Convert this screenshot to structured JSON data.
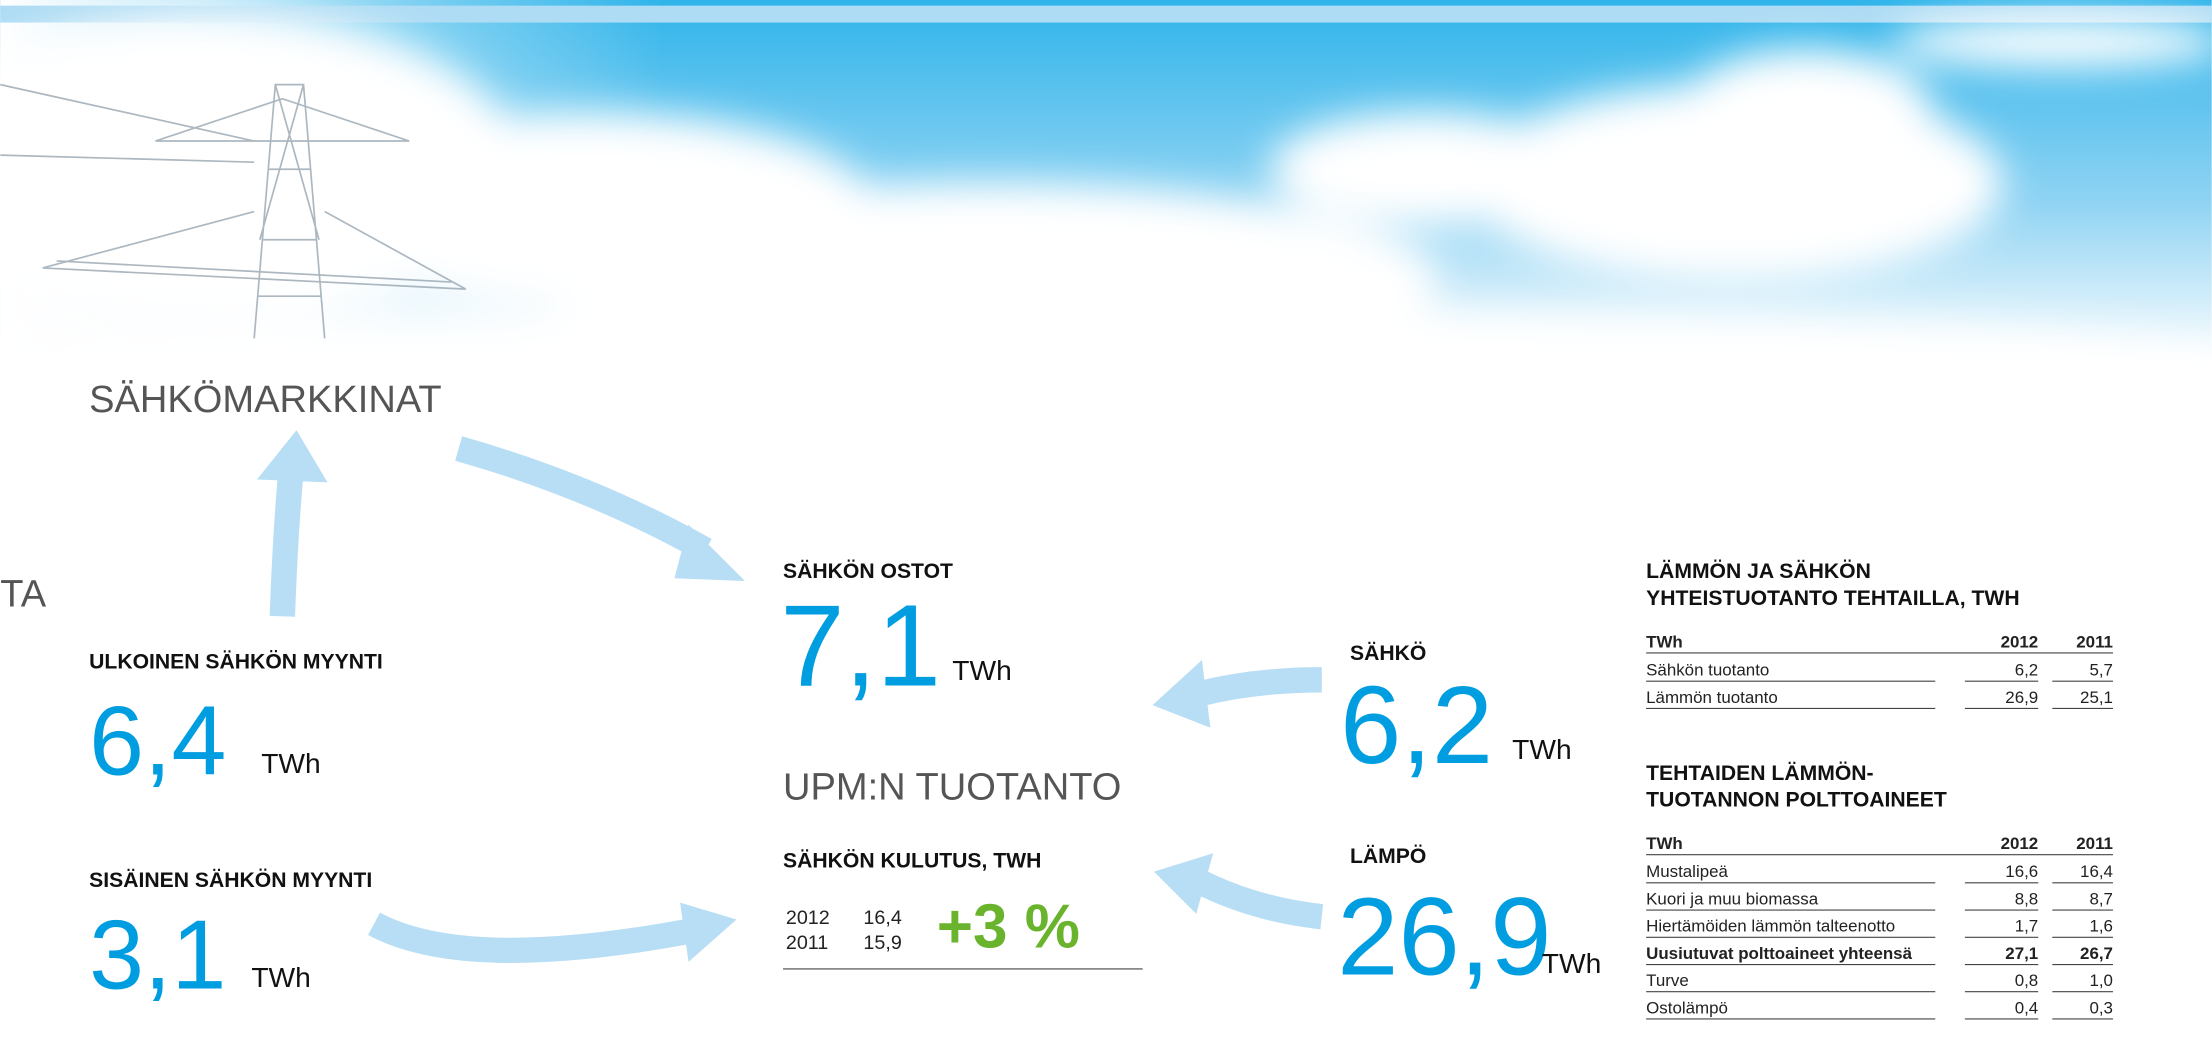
{
  "header": {
    "title": "SÄHKÖMARKKINAT",
    "fragment": "TA"
  },
  "external_sales": {
    "label": "ULKOINEN SÄHKÖN MYYNTI",
    "value": "6,4",
    "unit": "TWh"
  },
  "internal_sales": {
    "label": "SISÄINEN SÄHKÖN MYYNTI",
    "value": "3,1",
    "unit": "TWh"
  },
  "purchases": {
    "label": "SÄHKÖN OSTOT",
    "value": "7,1",
    "unit": "TWh"
  },
  "production": {
    "title": "UPM:N TUOTANTO"
  },
  "consumption": {
    "label": "SÄHKÖN KULUTUS, TWH",
    "rows": [
      [
        "2012",
        "16,4"
      ],
      [
        "2011",
        "15,9"
      ]
    ],
    "change": "+3 %"
  },
  "electricity": {
    "label": "SÄHKÖ",
    "value": "6,2",
    "unit": "TWh"
  },
  "heat": {
    "label": "LÄMPÖ",
    "value": "26,9",
    "unit": "TWh"
  },
  "tables": [
    {
      "title": [
        "LÄMMÖN JA SÄHKÖN",
        "YHTEISTUOTANTO TEHTAILLA, TWH"
      ],
      "header": [
        "TWh",
        "2012",
        "2011"
      ],
      "rows": [
        {
          "cells": [
            "Sähkön tuotanto",
            "6,2",
            "5,7"
          ],
          "bold": false
        },
        {
          "cells": [
            "Lämmön tuotanto",
            "26,9",
            "25,1"
          ],
          "bold": false
        }
      ]
    },
    {
      "title": [
        "TEHTAIDEN LÄMMÖN-",
        "TUOTANNON POLTTOAINEET"
      ],
      "header": [
        "TWh",
        "2012",
        "2011"
      ],
      "rows": [
        {
          "cells": [
            "Mustalipeä",
            "16,6",
            "16,4"
          ],
          "bold": false
        },
        {
          "cells": [
            "Kuori ja muu biomassa",
            "8,8",
            "8,7"
          ],
          "bold": false
        },
        {
          "cells": [
            "Hiertämöiden lämmön talteenotto",
            "1,7",
            "1,6"
          ],
          "bold": false
        },
        {
          "cells": [
            "Uusiutuvat polttoaineet yhteensä",
            "27,1",
            "26,7"
          ],
          "bold": true
        },
        {
          "cells": [
            "Turve",
            "0,8",
            "1,0"
          ],
          "bold": false
        },
        {
          "cells": [
            "Ostolämpö",
            "0,4",
            "0,3"
          ],
          "bold": false
        }
      ]
    }
  ]
}
